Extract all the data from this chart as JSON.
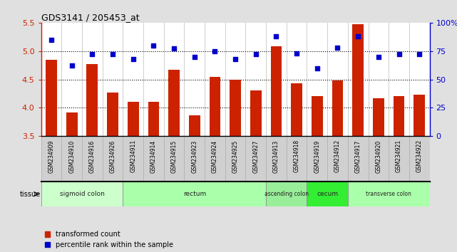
{
  "title": "GDS3141 / 205453_at",
  "samples": [
    "GSM234909",
    "GSM234910",
    "GSM234916",
    "GSM234926",
    "GSM234911",
    "GSM234914",
    "GSM234915",
    "GSM234923",
    "GSM234924",
    "GSM234925",
    "GSM234927",
    "GSM234913",
    "GSM234918",
    "GSM234919",
    "GSM234912",
    "GSM234917",
    "GSM234920",
    "GSM234921",
    "GSM234922"
  ],
  "bar_values": [
    4.84,
    3.92,
    4.77,
    4.27,
    4.1,
    4.1,
    4.67,
    3.87,
    4.54,
    4.5,
    4.3,
    5.08,
    4.43,
    4.2,
    4.48,
    5.47,
    4.17,
    4.2,
    4.23
  ],
  "dot_values": [
    85,
    62,
    72,
    72,
    68,
    80,
    77,
    70,
    75,
    68,
    72,
    88,
    73,
    60,
    78,
    88,
    70,
    72,
    72
  ],
  "ylim_left": [
    3.5,
    5.5
  ],
  "ylim_right": [
    0,
    100
  ],
  "yticks_left": [
    3.5,
    4.0,
    4.5,
    5.0,
    5.5
  ],
  "yticks_right": [
    0,
    25,
    50,
    75,
    100
  ],
  "ytick_labels_right": [
    "0",
    "25",
    "50",
    "75",
    "100%"
  ],
  "hlines": [
    4.0,
    4.5,
    5.0
  ],
  "bar_color": "#cc2200",
  "dot_color": "#0000cc",
  "tissue_groups": [
    {
      "label": "sigmoid colon",
      "start": 0,
      "end": 4,
      "color": "#ccffcc"
    },
    {
      "label": "rectum",
      "start": 4,
      "end": 11,
      "color": "#aaffaa"
    },
    {
      "label": "ascending colon",
      "start": 11,
      "end": 13,
      "color": "#99ee99"
    },
    {
      "label": "cecum",
      "start": 13,
      "end": 15,
      "color": "#33ee33"
    },
    {
      "label": "transverse colon",
      "start": 15,
      "end": 19,
      "color": "#aaffaa"
    }
  ],
  "legend_bar_label": "transformed count",
  "legend_dot_label": "percentile rank within the sample",
  "fig_bg": "#e0e0e0",
  "plot_bg": "#ffffff",
  "label_bg": "#d0d0d0"
}
